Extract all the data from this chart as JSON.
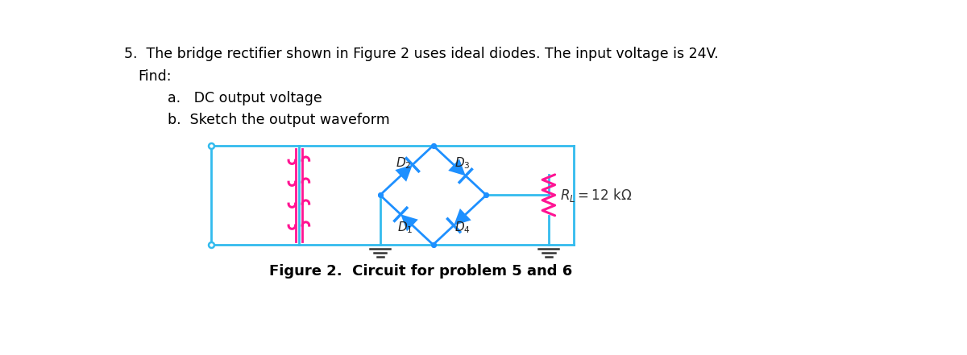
{
  "title_line1": "5.  The bridge rectifier shown in Figure 2 uses ideal diodes. The input voltage is 24V.",
  "title_line2": "Find:",
  "item_a": "a.   DC output voltage",
  "item_b": "b.  Sketch the output waveform",
  "caption": "Figure 2.  Circuit for problem 5 and 6",
  "wire_color": "#33BBEE",
  "diode_color": "#1E90FF",
  "transformer_color": "#FF1493",
  "resistor_color": "#FF1493",
  "core_color": "#FF1493",
  "background": "#ffffff",
  "text_color": "#000000",
  "lw_wire": 2.0,
  "lw_coil": 2.2,
  "lw_diode": 2.0,
  "lw_res": 2.2,
  "n_coils": 4,
  "coil_r": 0.055,
  "diode_sz": 0.13,
  "fig_width": 12.0,
  "fig_height": 4.41,
  "xlim": [
    0,
    12
  ],
  "ylim": [
    0,
    4.41
  ]
}
